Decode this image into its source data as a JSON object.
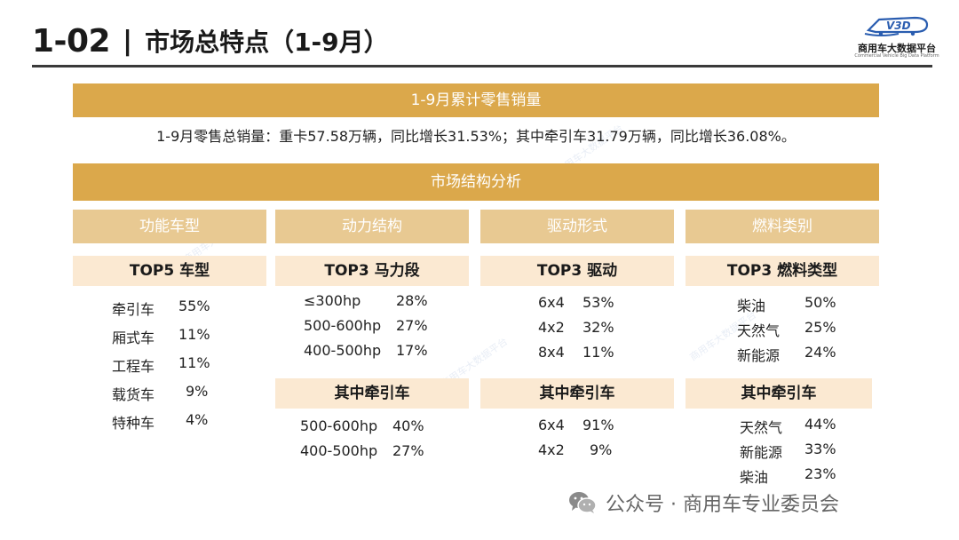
{
  "header": {
    "section_number": "1-02",
    "separator": "|",
    "title": "市场总特点（1-9月）",
    "logo_mark": "V3D",
    "logo_name": "商用车大数据平台",
    "logo_sub": "Commercial Vehicle Big Data Platform"
  },
  "sales": {
    "title": "1-9月累计零售销量",
    "summary": "1-9月零售总销量：重卡57.58万辆，同比增长31.53%；其中牵引车31.79万辆，同比增长36.08%。"
  },
  "analysis": {
    "title": "市场结构分析",
    "columns": [
      {
        "category": "功能车型",
        "top_title": "TOP5 车型",
        "top_items": [
          {
            "label": "牵引车",
            "value": "55%"
          },
          {
            "label": "厢式车",
            "value": "11%"
          },
          {
            "label": "工程车",
            "value": "11%"
          },
          {
            "label": "载货车",
            "value": "9%"
          },
          {
            "label": "特种车",
            "value": "4%"
          }
        ]
      },
      {
        "category": "动力结构",
        "top_title": "TOP3 马力段",
        "top_items": [
          {
            "label": "≤300hp",
            "value": "28%"
          },
          {
            "label": "500-600hp",
            "value": "27%"
          },
          {
            "label": "400-500hp",
            "value": "17%"
          }
        ],
        "sub_title": "其中牵引车",
        "sub_items": [
          {
            "label": "500-600hp",
            "value": "40%"
          },
          {
            "label": "400-500hp",
            "value": "27%"
          }
        ]
      },
      {
        "category": "驱动形式",
        "top_title": "TOP3 驱动",
        "top_items": [
          {
            "label": "6x4",
            "value": "53%"
          },
          {
            "label": "4x2",
            "value": "32%"
          },
          {
            "label": "8x4",
            "value": "11%"
          }
        ],
        "sub_title": "其中牵引车",
        "sub_items": [
          {
            "label": "6x4",
            "value": "91%"
          },
          {
            "label": "4x2",
            "value": "9%"
          }
        ]
      },
      {
        "category": "燃料类别",
        "top_title": "TOP3 燃料类型",
        "top_items": [
          {
            "label": "柴油",
            "value": "50%"
          },
          {
            "label": "天然气",
            "value": "25%"
          },
          {
            "label": "新能源",
            "value": "24%"
          }
        ],
        "sub_title": "其中牵引车",
        "sub_items": [
          {
            "label": "天然气",
            "value": "44%"
          },
          {
            "label": "新能源",
            "value": "33%"
          },
          {
            "label": "柴油",
            "value": "23%"
          }
        ]
      }
    ]
  },
  "footer": {
    "watermark": "公众号 · 商用车专业委员会"
  },
  "colors": {
    "band": "#dba84b",
    "category": "#e8c992",
    "subheader": "#fbe9d2"
  }
}
